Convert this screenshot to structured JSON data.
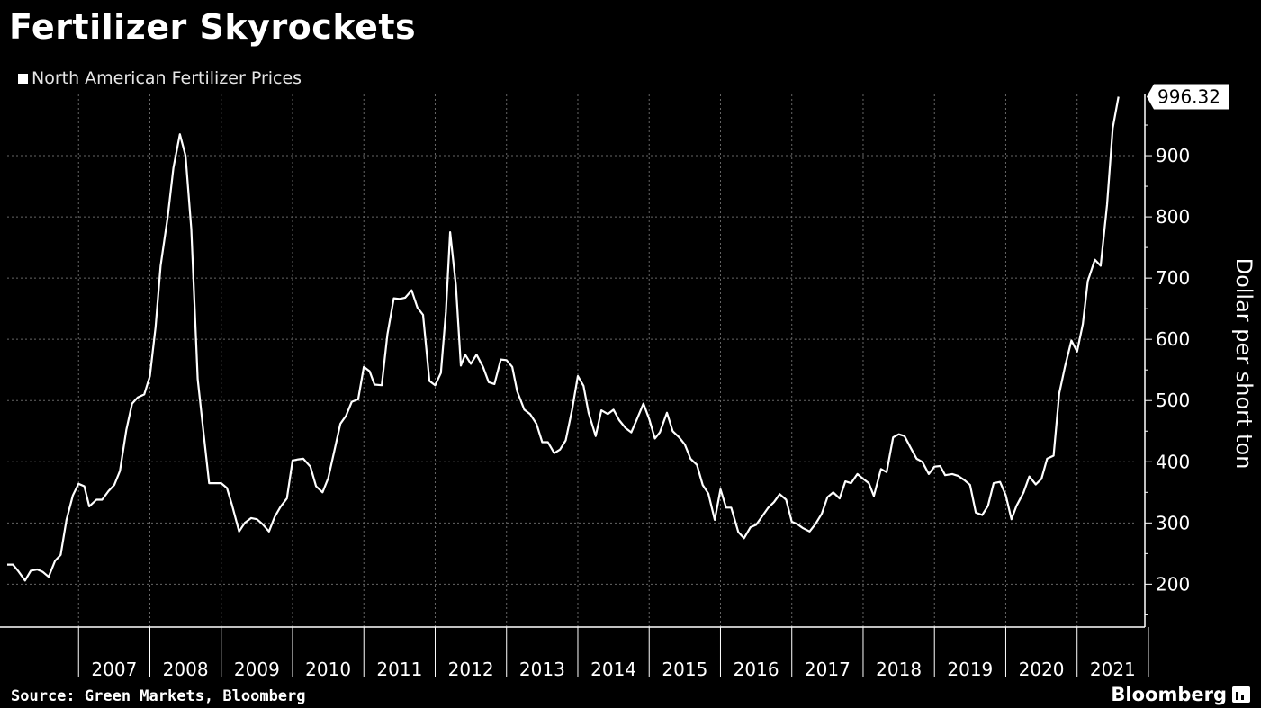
{
  "header": {
    "title": "Fertilizer Skyrockets",
    "legend": "North American Fertilizer Prices"
  },
  "footer": {
    "source": "Source: Green Markets, Bloomberg",
    "brand": "Bloomberg"
  },
  "colors": {
    "background": "#000000",
    "line": "#ffffff",
    "grid": "#666666"
  },
  "chart_data": {
    "type": "line",
    "title": "Fertilizer Skyrockets",
    "ylabel": "Dollar per short ton",
    "xlabel": "",
    "x_axis": "year",
    "xlim": [
      2006.0,
      2021.95
    ],
    "ylim": [
      130,
      1000
    ],
    "yticks": [
      200,
      300,
      400,
      500,
      600,
      700,
      800,
      900
    ],
    "year_labels": [
      "2007",
      "2008",
      "2009",
      "2010",
      "2011",
      "2012",
      "2013",
      "2014",
      "2015",
      "2016",
      "2017",
      "2018",
      "2019",
      "2020",
      "2021"
    ],
    "last_value_label": "996.32",
    "grid": true,
    "legend_position": "top-left",
    "series": [
      {
        "name": "North American Fertilizer Prices",
        "points": [
          [
            2006.0,
            232
          ],
          [
            2006.08,
            232
          ],
          [
            2006.15,
            222
          ],
          [
            2006.25,
            206
          ],
          [
            2006.33,
            222
          ],
          [
            2006.42,
            224
          ],
          [
            2006.5,
            220
          ],
          [
            2006.58,
            212
          ],
          [
            2006.67,
            238
          ],
          [
            2006.75,
            248
          ],
          [
            2006.83,
            305
          ],
          [
            2006.92,
            345
          ],
          [
            2007.0,
            364
          ],
          [
            2007.08,
            360
          ],
          [
            2007.15,
            327
          ],
          [
            2007.25,
            338
          ],
          [
            2007.33,
            338
          ],
          [
            2007.42,
            352
          ],
          [
            2007.5,
            362
          ],
          [
            2007.58,
            385
          ],
          [
            2007.67,
            452
          ],
          [
            2007.75,
            495
          ],
          [
            2007.83,
            505
          ],
          [
            2007.92,
            510
          ],
          [
            2008.0,
            540
          ],
          [
            2008.08,
            620
          ],
          [
            2008.15,
            720
          ],
          [
            2008.25,
            800
          ],
          [
            2008.33,
            880
          ],
          [
            2008.42,
            935
          ],
          [
            2008.5,
            900
          ],
          [
            2008.58,
            780
          ],
          [
            2008.67,
            535
          ],
          [
            2008.75,
            450
          ],
          [
            2008.83,
            365
          ],
          [
            2008.92,
            365
          ],
          [
            2009.0,
            365
          ],
          [
            2009.08,
            357
          ],
          [
            2009.15,
            330
          ],
          [
            2009.25,
            286
          ],
          [
            2009.33,
            300
          ],
          [
            2009.42,
            308
          ],
          [
            2009.5,
            306
          ],
          [
            2009.58,
            298
          ],
          [
            2009.67,
            286
          ],
          [
            2009.75,
            310
          ],
          [
            2009.83,
            326
          ],
          [
            2009.92,
            340
          ],
          [
            2010.0,
            402
          ],
          [
            2010.08,
            404
          ],
          [
            2010.15,
            405
          ],
          [
            2010.25,
            392
          ],
          [
            2010.33,
            360
          ],
          [
            2010.42,
            350
          ],
          [
            2010.5,
            373
          ],
          [
            2010.58,
            415
          ],
          [
            2010.67,
            462
          ],
          [
            2010.75,
            475
          ],
          [
            2010.83,
            498
          ],
          [
            2010.92,
            502
          ],
          [
            2011.0,
            555
          ],
          [
            2011.08,
            548
          ],
          [
            2011.15,
            526
          ],
          [
            2011.25,
            525
          ],
          [
            2011.33,
            608
          ],
          [
            2011.42,
            667
          ],
          [
            2011.5,
            666
          ],
          [
            2011.58,
            668
          ],
          [
            2011.67,
            680
          ],
          [
            2011.75,
            652
          ],
          [
            2011.83,
            640
          ],
          [
            2011.92,
            532
          ],
          [
            2012.0,
            525
          ],
          [
            2012.08,
            545
          ],
          [
            2012.15,
            645
          ],
          [
            2012.21,
            775
          ],
          [
            2012.29,
            688
          ],
          [
            2012.36,
            557
          ],
          [
            2012.42,
            575
          ],
          [
            2012.5,
            560
          ],
          [
            2012.58,
            575
          ],
          [
            2012.67,
            555
          ],
          [
            2012.75,
            530
          ],
          [
            2012.83,
            527
          ],
          [
            2012.92,
            567
          ],
          [
            2013.0,
            566
          ],
          [
            2013.08,
            555
          ],
          [
            2013.15,
            515
          ],
          [
            2013.25,
            485
          ],
          [
            2013.33,
            478
          ],
          [
            2013.42,
            462
          ],
          [
            2013.5,
            432
          ],
          [
            2013.58,
            432
          ],
          [
            2013.67,
            414
          ],
          [
            2013.75,
            420
          ],
          [
            2013.83,
            435
          ],
          [
            2013.92,
            485
          ],
          [
            2014.0,
            540
          ],
          [
            2014.08,
            524
          ],
          [
            2014.15,
            480
          ],
          [
            2014.25,
            442
          ],
          [
            2014.33,
            484
          ],
          [
            2014.42,
            478
          ],
          [
            2014.5,
            485
          ],
          [
            2014.58,
            468
          ],
          [
            2014.67,
            455
          ],
          [
            2014.75,
            448
          ],
          [
            2014.83,
            470
          ],
          [
            2014.92,
            495
          ],
          [
            2015.0,
            470
          ],
          [
            2015.08,
            438
          ],
          [
            2015.15,
            448
          ],
          [
            2015.25,
            480
          ],
          [
            2015.33,
            450
          ],
          [
            2015.42,
            440
          ],
          [
            2015.5,
            428
          ],
          [
            2015.58,
            405
          ],
          [
            2015.67,
            395
          ],
          [
            2015.75,
            362
          ],
          [
            2015.83,
            348
          ],
          [
            2015.92,
            305
          ],
          [
            2016.0,
            355
          ],
          [
            2016.08,
            325
          ],
          [
            2016.15,
            325
          ],
          [
            2016.25,
            285
          ],
          [
            2016.33,
            275
          ],
          [
            2016.42,
            293
          ],
          [
            2016.5,
            297
          ],
          [
            2016.58,
            310
          ],
          [
            2016.67,
            325
          ],
          [
            2016.75,
            334
          ],
          [
            2016.83,
            347
          ],
          [
            2016.92,
            338
          ],
          [
            2017.0,
            302
          ],
          [
            2017.08,
            298
          ],
          [
            2017.15,
            292
          ],
          [
            2017.25,
            286
          ],
          [
            2017.33,
            298
          ],
          [
            2017.42,
            315
          ],
          [
            2017.5,
            342
          ],
          [
            2017.58,
            350
          ],
          [
            2017.67,
            340
          ],
          [
            2017.75,
            368
          ],
          [
            2017.83,
            365
          ],
          [
            2017.92,
            380
          ],
          [
            2018.0,
            372
          ],
          [
            2018.08,
            365
          ],
          [
            2018.15,
            344
          ],
          [
            2018.25,
            388
          ],
          [
            2018.33,
            383
          ],
          [
            2018.42,
            440
          ],
          [
            2018.5,
            445
          ],
          [
            2018.58,
            442
          ],
          [
            2018.67,
            422
          ],
          [
            2018.75,
            405
          ],
          [
            2018.83,
            400
          ],
          [
            2018.92,
            380
          ],
          [
            2019.0,
            392
          ],
          [
            2019.08,
            393
          ],
          [
            2019.15,
            378
          ],
          [
            2019.25,
            380
          ],
          [
            2019.33,
            377
          ],
          [
            2019.42,
            370
          ],
          [
            2019.5,
            362
          ],
          [
            2019.58,
            317
          ],
          [
            2019.67,
            313
          ],
          [
            2019.75,
            328
          ],
          [
            2019.83,
            365
          ],
          [
            2019.92,
            367
          ],
          [
            2020.0,
            345
          ],
          [
            2020.08,
            306
          ],
          [
            2020.15,
            328
          ],
          [
            2020.25,
            350
          ],
          [
            2020.33,
            376
          ],
          [
            2020.42,
            363
          ],
          [
            2020.5,
            372
          ],
          [
            2020.58,
            405
          ],
          [
            2020.67,
            410
          ],
          [
            2020.75,
            512
          ],
          [
            2020.83,
            555
          ],
          [
            2020.92,
            598
          ],
          [
            2021.0,
            580
          ],
          [
            2021.08,
            625
          ],
          [
            2021.15,
            695
          ],
          [
            2021.25,
            730
          ],
          [
            2021.33,
            720
          ],
          [
            2021.42,
            820
          ],
          [
            2021.5,
            945
          ],
          [
            2021.58,
            996.32
          ]
        ]
      }
    ]
  }
}
